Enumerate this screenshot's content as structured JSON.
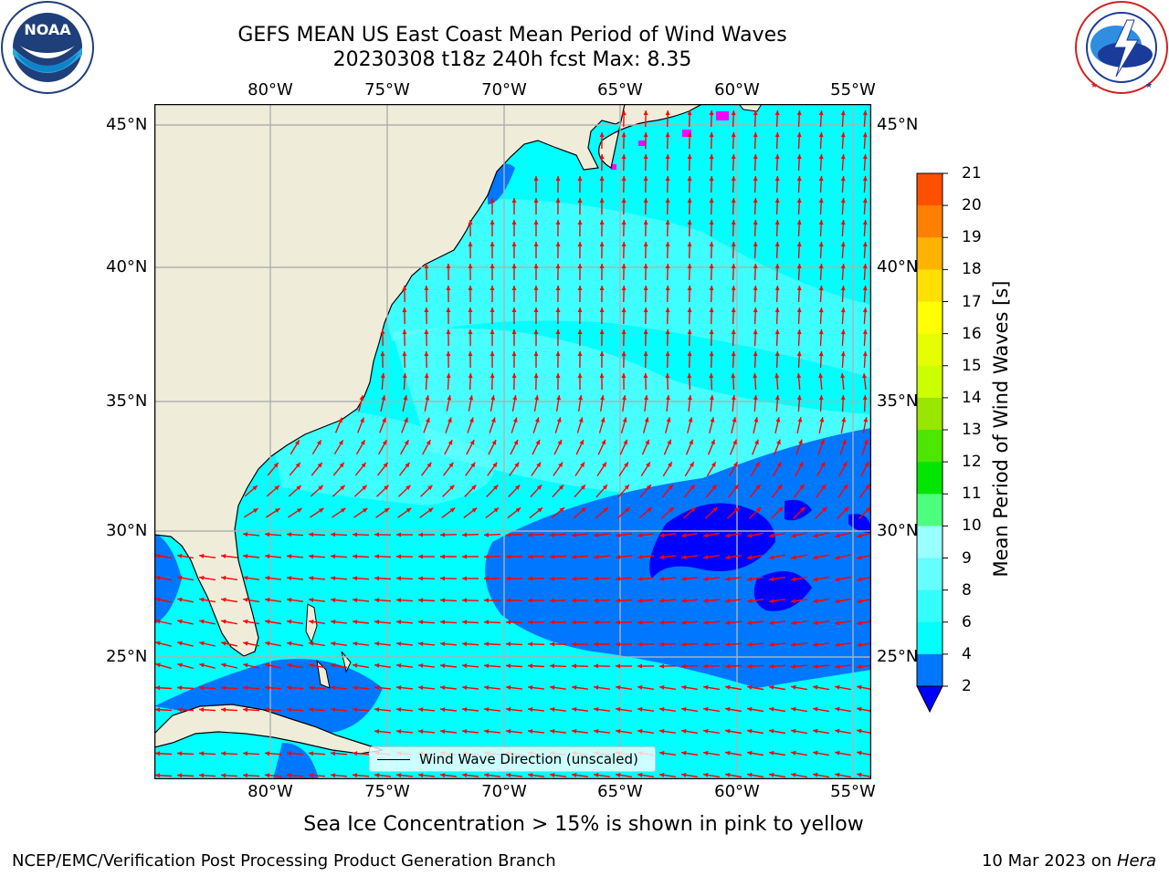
{
  "header": {
    "title_line1": "GEFS MEAN US East Coast Mean Period of Wind Waves",
    "title_line2": "20230308 t18z 240h fcst   Max: 8.35"
  },
  "logos": {
    "left": {
      "name": "noaa-logo",
      "text": "NOAA",
      "ring_text": "NATIONAL OCEANIC AND ATMOSPHERIC ADMINISTRATION · U.S. DEPARTMENT OF COMMERCE"
    },
    "right": {
      "name": "nws-logo",
      "ring_text": "NATIONAL WEATHER SERVICE"
    }
  },
  "map": {
    "lon_labels": [
      "80°W",
      "75°W",
      "70°W",
      "65°W",
      "60°W",
      "55°W"
    ],
    "lat_labels": [
      "45°N",
      "40°N",
      "35°N",
      "30°N",
      "25°N"
    ],
    "lon_extent": [
      -85,
      -54.4
    ],
    "lat_extent": [
      20.3,
      46
    ],
    "gridlines": true,
    "land_color": "#efedd9",
    "ocean_color": "#00ffff",
    "grid_color": "#b0b0b0",
    "arrow_color": "#ff0000"
  },
  "legend": {
    "label": "Wind Wave Direction (unscaled)"
  },
  "colorbar": {
    "label": "Mean Period of Wind Waves [s]",
    "ticks": [
      "2",
      "4",
      "6",
      "8",
      "9",
      "10",
      "11",
      "12",
      "13",
      "14",
      "15",
      "16",
      "17",
      "18",
      "19",
      "20",
      "21"
    ],
    "colors": [
      "#0077ff",
      "#00ffff",
      "#33ffff",
      "#66ffff",
      "#99ffff",
      "#4dff7f",
      "#00e600",
      "#4de600",
      "#99e600",
      "#ccff00",
      "#e6ff00",
      "#ffff00",
      "#ffe000",
      "#ffb300",
      "#ff8000",
      "#ff5000",
      "#ff2000",
      "#ff0000"
    ],
    "extend_color": "#0000ff"
  },
  "notes": {
    "sea_ice": "Sea Ice Concentration > 15% is shown in pink to yellow"
  },
  "footer": {
    "left": "NCEP/EMC/Verification Post Processing Product Generation Branch",
    "date": "10 Mar 2023 on ",
    "machine": "Hera"
  }
}
